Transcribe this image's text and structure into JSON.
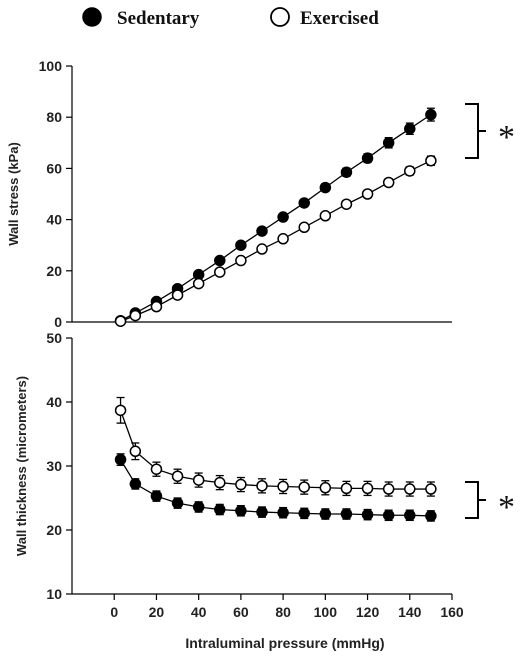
{
  "legend": {
    "sedentary": "Sedentary",
    "exercised": "Exercised"
  },
  "chart_data": [
    {
      "type": "line",
      "ylabel": "Wall stress  (kPa)",
      "ylim": [
        0,
        100
      ],
      "xlim": [
        -20,
        160
      ],
      "y_ticks": [
        "0",
        "20",
        "40",
        "60",
        "80",
        "100"
      ],
      "significance": "*",
      "series": [
        {
          "name": "Sedentary",
          "marker": "filled",
          "x": [
            3,
            10,
            20,
            30,
            40,
            50,
            60,
            70,
            80,
            90,
            100,
            110,
            120,
            130,
            140,
            150
          ],
          "y": [
            0.5,
            3.5,
            8,
            13,
            18.5,
            24,
            30,
            35.5,
            41,
            46.5,
            52.5,
            58.5,
            64,
            70,
            75.5,
            81
          ],
          "error": [
            0.5,
            0.6,
            0.8,
            1,
            1,
            1.1,
            1.2,
            1.3,
            1.3,
            1.4,
            1.5,
            1.6,
            1.7,
            2,
            2.2,
            2.5
          ]
        },
        {
          "name": "Exercised",
          "marker": "open",
          "x": [
            3,
            10,
            20,
            30,
            40,
            50,
            60,
            70,
            80,
            90,
            100,
            110,
            120,
            130,
            140,
            150
          ],
          "y": [
            0.3,
            2.5,
            6,
            10.5,
            15,
            19.5,
            24,
            28.5,
            32.5,
            37,
            41.5,
            46,
            50,
            54.5,
            59,
            63
          ],
          "error": [
            0.4,
            0.5,
            0.6,
            0.8,
            0.8,
            0.9,
            1,
            1,
            1.1,
            1.1,
            1.2,
            1.3,
            1.4,
            1.5,
            1.6,
            1.8
          ]
        }
      ]
    },
    {
      "type": "line",
      "xlabel": "Intraluminal pressure (mmHg)",
      "ylabel": "Wall thickness (micrometers)",
      "ylim": [
        10,
        50
      ],
      "xlim": [
        -20,
        160
      ],
      "x_ticks": [
        "0",
        "20",
        "40",
        "60",
        "80",
        "100",
        "120",
        "140",
        "160"
      ],
      "y_ticks": [
        "10",
        "20",
        "30",
        "40",
        "50"
      ],
      "significance": "*",
      "series": [
        {
          "name": "Sedentary",
          "marker": "filled",
          "x": [
            3,
            10,
            20,
            30,
            40,
            50,
            60,
            70,
            80,
            90,
            100,
            110,
            120,
            130,
            140,
            150
          ],
          "y": [
            31,
            27.2,
            25.3,
            24.2,
            23.6,
            23.2,
            23,
            22.8,
            22.7,
            22.6,
            22.5,
            22.5,
            22.4,
            22.3,
            22.3,
            22.2
          ],
          "error": [
            0.9,
            0.8,
            0.8,
            0.8,
            0.8,
            0.8,
            0.8,
            0.8,
            0.8,
            0.8,
            0.8,
            0.8,
            0.8,
            0.8,
            0.8,
            0.8
          ]
        },
        {
          "name": "Exercised",
          "marker": "open",
          "x": [
            3,
            10,
            20,
            30,
            40,
            50,
            60,
            70,
            80,
            90,
            100,
            110,
            120,
            130,
            140,
            150
          ],
          "y": [
            38.7,
            32.3,
            29.5,
            28.4,
            27.8,
            27.4,
            27.1,
            26.9,
            26.8,
            26.7,
            26.6,
            26.5,
            26.5,
            26.4,
            26.4,
            26.4
          ],
          "error": [
            2,
            1.3,
            1.1,
            1.1,
            1.1,
            1.1,
            1.1,
            1.1,
            1.1,
            1.1,
            1.1,
            1.1,
            1.1,
            1.1,
            1.1,
            1.1
          ]
        }
      ]
    }
  ]
}
